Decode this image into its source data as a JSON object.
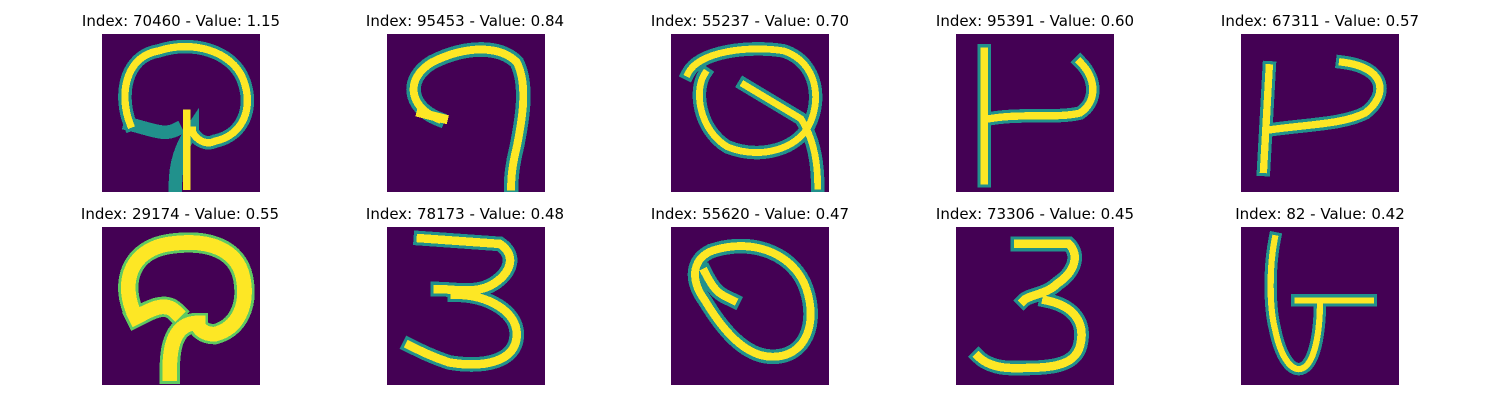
{
  "figure": {
    "colors": {
      "background": "#440154",
      "mid": "#21918c",
      "stroke": "#fde725",
      "edge": "#5ec962"
    },
    "panels": [
      {
        "title": "Index: 70460 - Value: 1.15",
        "glyph": "mushroom-thin"
      },
      {
        "title": "Index: 95453 - Value: 0.84",
        "glyph": "seven-hook"
      },
      {
        "title": "Index: 55237 - Value: 0.70",
        "glyph": "loop-q"
      },
      {
        "title": "Index: 95391 - Value: 0.60",
        "glyph": "h-shape"
      },
      {
        "title": "Index: 67311 - Value: 0.57",
        "glyph": "p-shape"
      },
      {
        "title": "Index: 29174 - Value: 0.55",
        "glyph": "mushroom-bold"
      },
      {
        "title": "Index: 78173 - Value: 0.48",
        "glyph": "three-a"
      },
      {
        "title": "Index: 55620 - Value: 0.47",
        "glyph": "zero-loop"
      },
      {
        "title": "Index: 73306 - Value: 0.45",
        "glyph": "three-b"
      },
      {
        "title": "Index: 82 - Value: 0.42",
        "glyph": "u-hook"
      }
    ]
  }
}
